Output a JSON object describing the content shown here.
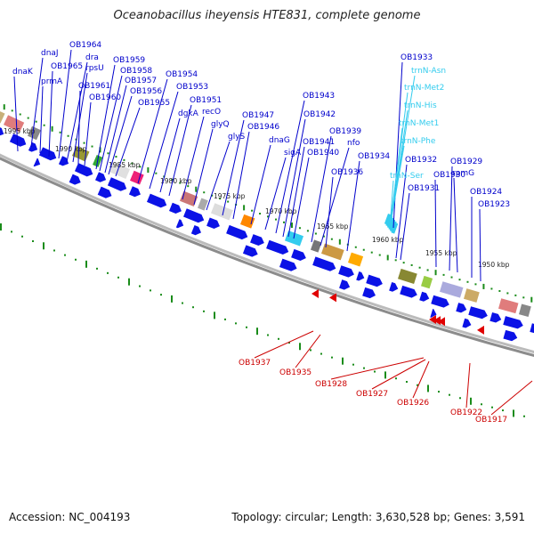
{
  "title": "Oceanobacillus iheyensis HTE831, complete genome",
  "footer": {
    "accession": "Accession: NC_004193",
    "summary": "Topology: circular; Length: 3,630,528 bp; Genes: 3,591"
  },
  "colors": {
    "forward_gene": "#0b12e6",
    "reverse_gene": "#e00000",
    "trna": "#33ccee",
    "label_forward": "#0000cc",
    "label_reverse": "#cc0000",
    "label_trna": "#33ccee",
    "tick": "#1a8c1a",
    "backbone": "#8c8c8c"
  },
  "kbp_markers": [
    "1995 kbp",
    "1990 kbp",
    "1985 kbp",
    "1980 kbp",
    "1975 kbp",
    "1970 kbp",
    "1965 kbp",
    "1960 kbp",
    "1955 kbp",
    "1950 kbp"
  ],
  "forward_labels": [
    "dnaK",
    "dnaJ",
    "prmA",
    "OB1965",
    "OB1964",
    "dra",
    "rpsU",
    "OB1961",
    "OB1960",
    "OB1959",
    "OB1958",
    "OB1957",
    "OB1956",
    "OB1955",
    "OB1954",
    "OB1953",
    "dgkA",
    "OB1951",
    "recO",
    "glyQ",
    "glyS",
    "OB1947",
    "OB1946",
    "dnaG",
    "sigA",
    "OB1943",
    "OB1942",
    "OB1941",
    "OB1940",
    "OB1939",
    "nfo",
    "OB1936",
    "OB1934",
    "OB1933",
    "OB1932",
    "OB1931",
    "OB1930",
    "OB1929",
    "rpmG",
    "OB1924",
    "OB1923"
  ],
  "trna_labels": [
    "trnN-Asn",
    "trnN-Met2",
    "trnN-His",
    "trnN-Met1",
    "trnN-Phe",
    "trnN-Ser"
  ],
  "reverse_labels": [
    "OB1937",
    "OB1935",
    "OB1928",
    "OB1927",
    "OB1926",
    "OB1922",
    "OB1917"
  ]
}
